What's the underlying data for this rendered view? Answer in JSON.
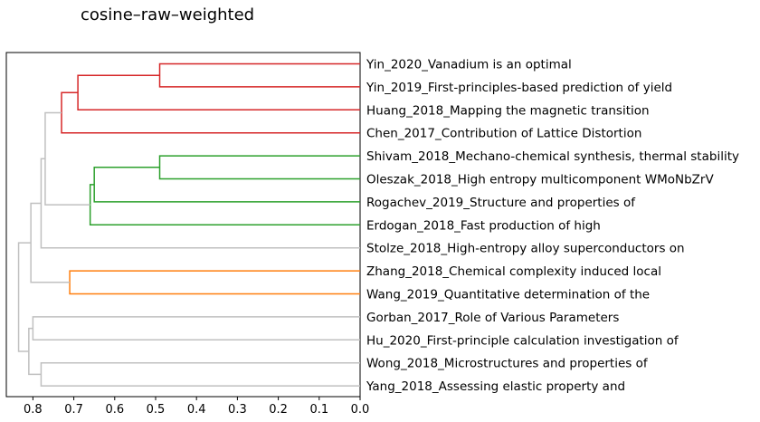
{
  "chart_data": {
    "type": "dendrogram",
    "title": "cosine–raw–weighted",
    "orientation": "left",
    "xlim": [
      0.865,
      0.0
    ],
    "xticks": [
      "0.8",
      "0.7",
      "0.6",
      "0.5",
      "0.4",
      "0.3",
      "0.2",
      "0.1",
      "0.0"
    ],
    "xtick_values": [
      0.8,
      0.7,
      0.6,
      0.5,
      0.4,
      0.3,
      0.2,
      0.1,
      0.0
    ],
    "leaves": [
      "Yin_2020_Vanadium is an optimal",
      "Yin_2019_First-principles-based prediction of yield",
      "Huang_2018_Mapping the magnetic transition",
      "Chen_2017_Contribution of Lattice Distortion",
      "Shivam_2018_Mechano-chemical synthesis, thermal stability",
      "Oleszak_2018_High entropy multicomponent WMoNbZrV",
      "Rogachev_2019_Structure and properties of",
      "Erdogan_2018_Fast production of high",
      "Stolze_2018_High-entropy alloy superconductors on",
      "Zhang_2018_Chemical complexity induced local",
      "Wang_2019_Quantitative determination of the",
      "Gorban_2017_Role of Various Parameters",
      "Hu_2020_First-principle calculation investigation of",
      "Wong_2018_Microstructures and properties of",
      "Yang_2018_Assessing elastic property and"
    ],
    "merges": [
      {
        "id": "m1",
        "a": "L0",
        "b": "L1",
        "height": 0.49,
        "color": "#d62728"
      },
      {
        "id": "m2",
        "a": "m1",
        "b": "L2",
        "height": 0.69,
        "color": "#d62728"
      },
      {
        "id": "m3",
        "a": "m2",
        "b": "L3",
        "height": 0.73,
        "color": "#d62728"
      },
      {
        "id": "m4",
        "a": "L4",
        "b": "L5",
        "height": 0.49,
        "color": "#2ca02c"
      },
      {
        "id": "m5",
        "a": "m4",
        "b": "L6",
        "height": 0.65,
        "color": "#2ca02c"
      },
      {
        "id": "m6",
        "a": "m5",
        "b": "L7",
        "height": 0.66,
        "color": "#2ca02c"
      },
      {
        "id": "m7",
        "a": "m3",
        "b": "m6",
        "height": 0.77,
        "color": "#c0c0c0"
      },
      {
        "id": "m8",
        "a": "m7",
        "b": "L8",
        "height": 0.78,
        "color": "#c0c0c0"
      },
      {
        "id": "m9",
        "a": "L9",
        "b": "L10",
        "height": 0.71,
        "color": "#ff7f0e"
      },
      {
        "id": "m10",
        "a": "m8",
        "b": "m9",
        "height": 0.805,
        "color": "#c0c0c0"
      },
      {
        "id": "m11",
        "a": "L11",
        "b": "L12",
        "height": 0.8,
        "color": "#c0c0c0"
      },
      {
        "id": "m12",
        "a": "L13",
        "b": "L14",
        "height": 0.78,
        "color": "#c0c0c0"
      },
      {
        "id": "m13",
        "a": "m11",
        "b": "m12",
        "height": 0.81,
        "color": "#c0c0c0"
      },
      {
        "id": "m14",
        "a": "m10",
        "b": "m13",
        "height": 0.835,
        "color": "#c0c0c0"
      }
    ],
    "colors": {
      "cluster_1": "#d62728",
      "cluster_2": "#2ca02c",
      "cluster_3": "#ff7f0e",
      "above_threshold": "#c0c0c0"
    },
    "grid": false,
    "legend": "none"
  }
}
